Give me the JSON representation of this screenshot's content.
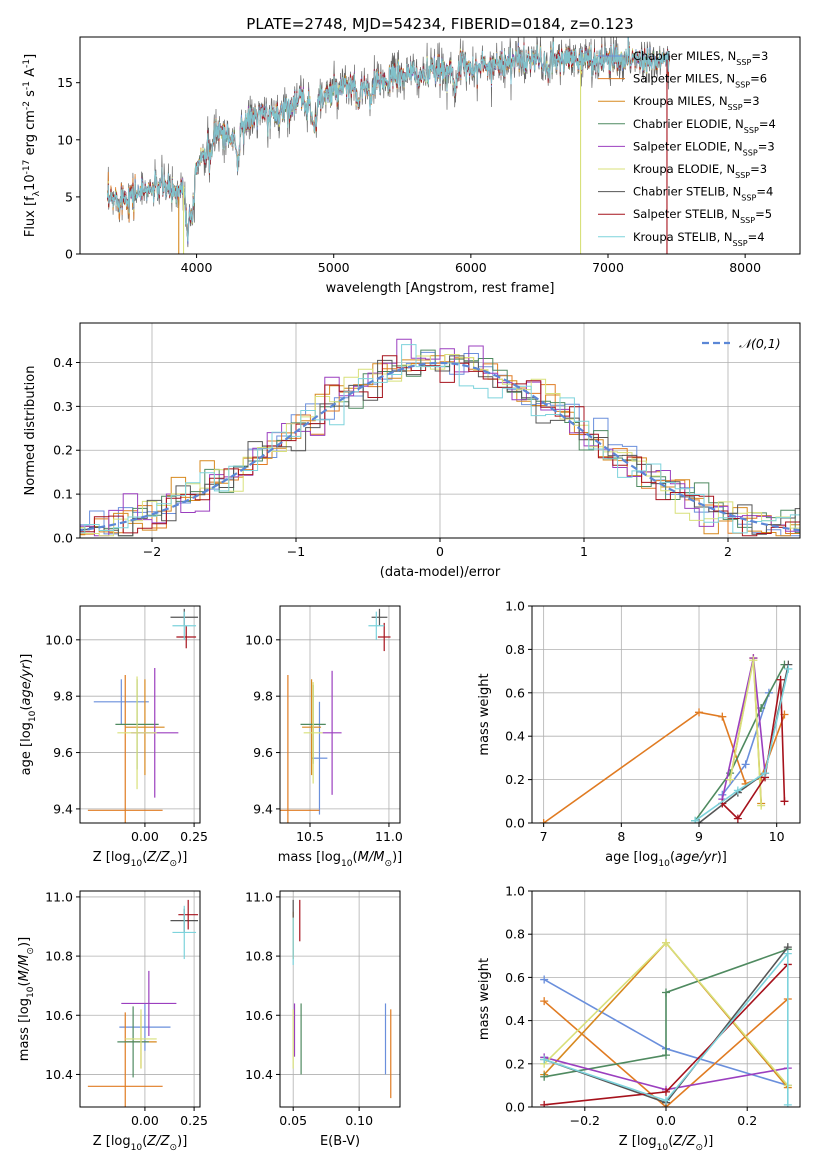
{
  "title": "PLATE=2748, MJD=54234, FIBERID=0184, z=0.123",
  "model_colors": [
    "#6a8fdc",
    "#e07b22",
    "#d7891f",
    "#4f8a60",
    "#9b3fbf",
    "#d8e07a",
    "#555555",
    "#a6121c",
    "#7dd3dc"
  ],
  "legend_entries": [
    "Chabrier MILES, N$_{SSP}$=3",
    "Salpeter MILES, N$_{SSP}$=6",
    "Kroupa MILES, N$_{SSP}$=3",
    "Chabrier ELODIE, N$_{SSP}$=4",
    "Salpeter ELODIE, N$_{SSP}$=3",
    "Kroupa ELODIE, N$_{SSP}$=3",
    "Chabrier STELIB, N$_{SSP}$=4",
    "Salpeter STELIB, N$_{SSP}$=5",
    "Kroupa STELIB, N$_{SSP}$=4"
  ],
  "chart_data": [
    {
      "id": "spectrum",
      "type": "line",
      "xlabel": "wavelength [Angstrom, rest frame]",
      "ylabel": "Flux [f$_\\lambda$10$^{-17}$ erg cm$^{-2}$ s$^{-1}$ A$^{-1}$]",
      "xlim": [
        3150,
        8400
      ],
      "ylim": [
        0,
        19
      ],
      "xticks": [
        4000,
        5000,
        6000,
        7000,
        8000
      ],
      "yticks": [
        0,
        5,
        10,
        15
      ],
      "grid": false,
      "legend_position": "top-right",
      "x_range": [
        3350,
        7450
      ],
      "envelope": [
        [
          3350,
          4.6
        ],
        [
          3450,
          5.0
        ],
        [
          3550,
          5.3
        ],
        [
          3650,
          5.6
        ],
        [
          3750,
          6.0
        ],
        [
          3850,
          5.4
        ],
        [
          3950,
          6.5
        ],
        [
          4050,
          9.0
        ],
        [
          4150,
          11.0
        ],
        [
          4250,
          10.0
        ],
        [
          4350,
          11.5
        ],
        [
          4450,
          12.2
        ],
        [
          4550,
          12.0
        ],
        [
          4650,
          12.8
        ],
        [
          4750,
          13.5
        ],
        [
          4850,
          13.0
        ],
        [
          4950,
          14.0
        ],
        [
          5050,
          14.3
        ],
        [
          5150,
          14.8
        ],
        [
          5250,
          14.5
        ],
        [
          5350,
          15.2
        ],
        [
          5450,
          15.5
        ],
        [
          5550,
          15.8
        ],
        [
          5650,
          15.6
        ],
        [
          5750,
          16.0
        ],
        [
          5850,
          16.2
        ],
        [
          5950,
          16.5
        ],
        [
          6050,
          16.3
        ],
        [
          6150,
          16.6
        ],
        [
          6250,
          16.8
        ],
        [
          6350,
          16.9
        ],
        [
          6450,
          17.0
        ],
        [
          6550,
          16.9
        ],
        [
          6650,
          17.0
        ],
        [
          6750,
          17.1
        ],
        [
          6850,
          17.0
        ],
        [
          6950,
          17.0
        ],
        [
          7050,
          17.1
        ],
        [
          7150,
          17.2
        ],
        [
          7250,
          17.0
        ],
        [
          7350,
          17.1
        ],
        [
          7450,
          17.0
        ]
      ]
    },
    {
      "id": "residuals",
      "type": "histogram",
      "xlabel": "(data-model)/error",
      "ylabel": "Normed distribution",
      "xlim": [
        -2.5,
        2.5
      ],
      "ylim": [
        0,
        0.49
      ],
      "xticks": [
        -2,
        -1,
        0,
        1,
        2
      ],
      "yticks": [
        0.0,
        0.1,
        0.2,
        0.3,
        0.4
      ],
      "grid": true,
      "legend_position": "top-right",
      "legend_entries": [
        "$\\mathcal{N}(0,1)$"
      ],
      "bin_width": 0.1
    },
    {
      "id": "age_vs_Z",
      "type": "scatter",
      "xlabel": "Z [log$_{10}$($Z/Z_\\odot$)]",
      "ylabel": "age  [log$_{10}$($age/yr$)]",
      "xlim": [
        -0.33,
        0.28
      ],
      "ylim": [
        9.35,
        10.12
      ],
      "xticks": [
        0.0,
        0.25
      ],
      "yticks": [
        9.4,
        9.6,
        9.8,
        10.0
      ],
      "grid": true,
      "points": [
        {
          "x": -0.12,
          "y": 9.78,
          "xerr": 0.14,
          "yerr": 0.08
        },
        {
          "x": -0.1,
          "y": 9.395,
          "xerr": 0.19,
          "yerr": 0.48
        },
        {
          "x": 0.0,
          "y": 9.69,
          "xerr": 0.1,
          "yerr": 0.17
        },
        {
          "x": -0.04,
          "y": 9.7,
          "xerr": 0.11,
          "yerr": 0.16
        },
        {
          "x": 0.05,
          "y": 9.67,
          "xerr": 0.12,
          "yerr": 0.23
        },
        {
          "x": -0.04,
          "y": 9.67,
          "xerr": 0.1,
          "yerr": 0.2
        },
        {
          "x": 0.2,
          "y": 10.08,
          "xerr": 0.07,
          "yerr": 0.03
        },
        {
          "x": 0.21,
          "y": 10.01,
          "xerr": 0.05,
          "yerr": 0.04
        },
        {
          "x": 0.2,
          "y": 10.05,
          "xerr": 0.06,
          "yerr": 0.05
        }
      ]
    },
    {
      "id": "age_vs_mass",
      "type": "scatter",
      "xlabel": "mass [log$_{10}$($M/M_\\odot$)]",
      "ylabel": "",
      "xlim": [
        10.31,
        11.07
      ],
      "ylim": [
        9.35,
        10.12
      ],
      "xticks": [
        10.5,
        11.0
      ],
      "yticks": [
        9.4,
        9.6,
        9.8,
        10.0
      ],
      "grid": true,
      "points": [
        {
          "x": 10.56,
          "y": 9.58,
          "xerr": 0.05,
          "yerr": 0.2
        },
        {
          "x": 10.36,
          "y": 9.395,
          "xerr": 0.2,
          "yerr": 0.48
        },
        {
          "x": 10.51,
          "y": 9.69,
          "xerr": 0.06,
          "yerr": 0.17
        },
        {
          "x": 10.52,
          "y": 9.7,
          "xerr": 0.08,
          "yerr": 0.14
        },
        {
          "x": 10.64,
          "y": 9.67,
          "xerr": 0.06,
          "yerr": 0.22
        },
        {
          "x": 10.52,
          "y": 9.67,
          "xerr": 0.06,
          "yerr": 0.18
        },
        {
          "x": 10.94,
          "y": 10.08,
          "xerr": 0.05,
          "yerr": 0.03
        },
        {
          "x": 10.97,
          "y": 10.01,
          "xerr": 0.04,
          "yerr": 0.05
        },
        {
          "x": 10.92,
          "y": 10.05,
          "xerr": 0.05,
          "yerr": 0.05
        }
      ]
    },
    {
      "id": "mass_weight_vs_age",
      "type": "line",
      "xlabel": "age  [log$_{10}$($age/yr$)]",
      "ylabel": "mass weight",
      "xlim": [
        6.85,
        10.3
      ],
      "ylim": [
        0,
        1.0
      ],
      "xticks": [
        7,
        8,
        9,
        10
      ],
      "yticks": [
        0.0,
        0.2,
        0.4,
        0.6,
        0.8,
        1.0
      ],
      "grid": true,
      "series": [
        {
          "x": [
            9.3,
            9.6,
            9.9
          ],
          "y": [
            0.13,
            0.27,
            0.6
          ]
        },
        {
          "x": [
            7.0,
            9.0,
            9.3,
            9.6,
            9.8,
            10.1
          ],
          "y": [
            0.0,
            0.51,
            0.49,
            0.18,
            0.21,
            0.5
          ]
        },
        {
          "x": [
            9.4,
            9.7,
            9.8
          ],
          "y": [
            0.2,
            0.76,
            0.09
          ]
        },
        {
          "x": [
            8.95,
            9.4,
            9.8,
            10.1
          ],
          "y": [
            0.01,
            0.23,
            0.53,
            0.73
          ]
        },
        {
          "x": [
            9.3,
            9.7,
            9.85
          ],
          "y": [
            0.11,
            0.76,
            0.23
          ]
        },
        {
          "x": [
            9.4,
            9.7,
            9.8
          ],
          "y": [
            0.2,
            0.75,
            0.08
          ]
        },
        {
          "x": [
            9.0,
            9.5,
            9.85,
            10.15
          ],
          "y": [
            0.0,
            0.14,
            0.23,
            0.73
          ]
        },
        {
          "x": [
            9.3,
            9.5,
            9.85,
            10.05,
            10.1
          ],
          "y": [
            0.09,
            0.02,
            0.21,
            0.66,
            0.1
          ]
        },
        {
          "x": [
            8.95,
            9.5,
            9.85,
            10.15
          ],
          "y": [
            0.01,
            0.15,
            0.23,
            0.71
          ]
        }
      ]
    },
    {
      "id": "mass_vs_Z",
      "type": "scatter",
      "xlabel": "Z [log$_{10}$($Z/Z_\\odot$)]",
      "ylabel": "mass [log$_{10}$($M/M_\\odot$)]",
      "xlim": [
        -0.33,
        0.28
      ],
      "ylim": [
        10.29,
        11.02
      ],
      "xticks": [
        0.0,
        0.25
      ],
      "yticks": [
        10.4,
        10.6,
        10.8,
        11.0
      ],
      "grid": true,
      "points": [
        {
          "x": 0.0,
          "y": 10.56,
          "xerr": 0.13,
          "yerr": 0.08
        },
        {
          "x": -0.1,
          "y": 10.36,
          "xerr": 0.19,
          "yerr": 0.25
        },
        {
          "x": -0.02,
          "y": 10.51,
          "xerr": 0.08,
          "yerr": 0.09
        },
        {
          "x": -0.06,
          "y": 10.51,
          "xerr": 0.08,
          "yerr": 0.12
        },
        {
          "x": 0.02,
          "y": 10.64,
          "xerr": 0.14,
          "yerr": 0.11
        },
        {
          "x": -0.02,
          "y": 10.52,
          "xerr": 0.08,
          "yerr": 0.1
        },
        {
          "x": 0.2,
          "y": 10.92,
          "xerr": 0.07,
          "yerr": 0.04
        },
        {
          "x": 0.22,
          "y": 10.94,
          "xerr": 0.05,
          "yerr": 0.05
        },
        {
          "x": 0.2,
          "y": 10.88,
          "xerr": 0.06,
          "yerr": 0.09
        }
      ]
    },
    {
      "id": "mass_vs_EBV",
      "type": "scatter",
      "xlabel": "E(B-V)",
      "ylabel": "",
      "xlim": [
        0.04,
        0.131
      ],
      "ylim": [
        10.29,
        11.02
      ],
      "xticks": [
        0.05,
        0.1
      ],
      "yticks": [
        10.4,
        10.6,
        10.8,
        11.0
      ],
      "grid": true,
      "points": [
        {
          "x": 0.12,
          "y": 10.52,
          "yerr": 0.12
        },
        {
          "x": 0.124,
          "y": 10.47,
          "yerr": 0.15
        },
        {
          "x": 0.05,
          "y": 10.87,
          "yerr": 0.08
        },
        {
          "x": 0.056,
          "y": 10.52,
          "yerr": 0.12
        },
        {
          "x": 0.051,
          "y": 10.55,
          "yerr": 0.09
        },
        {
          "x": 0.05,
          "y": 10.52,
          "yerr": 0.1
        },
        {
          "x": 0.05,
          "y": 10.96,
          "yerr": 0.03
        },
        {
          "x": 0.055,
          "y": 10.92,
          "yerr": 0.07
        },
        {
          "x": 0.05,
          "y": 10.85,
          "yerr": 0.08
        }
      ]
    },
    {
      "id": "mass_weight_vs_Z",
      "type": "line",
      "xlabel": "Z [log$_{10}$($Z/Z_\\odot$)]",
      "ylabel": "mass weight",
      "xlim": [
        -0.33,
        0.33
      ],
      "ylim": [
        0,
        1.0
      ],
      "xticks": [
        -0.2,
        0.0,
        0.2
      ],
      "yticks": [
        0.0,
        0.2,
        0.4,
        0.6,
        0.8,
        1.0
      ],
      "grid": true,
      "series": [
        {
          "x": [
            -0.3,
            0.0,
            0.3
          ],
          "y": [
            0.59,
            0.27,
            0.1
          ]
        },
        {
          "x": [
            -0.3,
            0.0,
            0.3
          ],
          "y": [
            0.49,
            0.0,
            0.5
          ]
        },
        {
          "x": [
            -0.3,
            0.0,
            0.3
          ],
          "y": [
            0.15,
            0.76,
            0.09
          ]
        },
        {
          "x": [
            -0.3,
            0.0,
            0.0,
            0.3
          ],
          "y": [
            0.14,
            0.24,
            0.53,
            0.73
          ]
        },
        {
          "x": [
            -0.3,
            0.0,
            0.3
          ],
          "y": [
            0.23,
            0.08,
            0.18
          ]
        },
        {
          "x": [
            -0.3,
            0.0,
            0.3
          ],
          "y": [
            0.2,
            0.76,
            0.1
          ]
        },
        {
          "x": [
            -0.3,
            0.0,
            0.3
          ],
          "y": [
            0.22,
            0.02,
            0.74
          ]
        },
        {
          "x": [
            -0.3,
            0.0,
            0.3
          ],
          "y": [
            0.01,
            0.07,
            0.66
          ]
        },
        {
          "x": [
            -0.3,
            0.0,
            0.3,
            0.3
          ],
          "y": [
            0.22,
            0.03,
            0.71,
            0.01
          ]
        }
      ]
    }
  ]
}
